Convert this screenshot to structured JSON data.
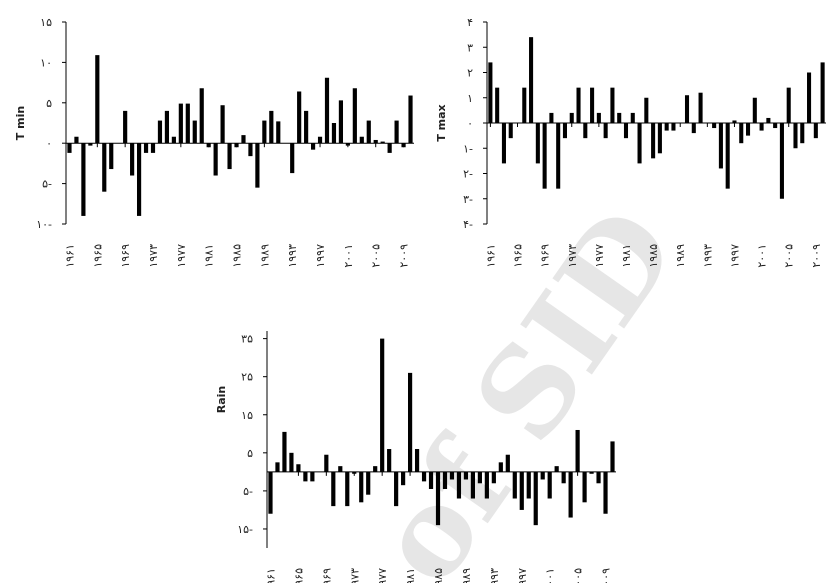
{
  "chart_data": [
    {
      "type": "bar",
      "y_label": "T min",
      "color": "#000000",
      "x": [
        1961,
        1962,
        1963,
        1964,
        1965,
        1966,
        1967,
        1968,
        1969,
        1970,
        1971,
        1972,
        1973,
        1974,
        1975,
        1976,
        1977,
        1978,
        1979,
        1980,
        1981,
        1982,
        1983,
        1984,
        1985,
        1986,
        1987,
        1988,
        1989,
        1990,
        1991,
        1992,
        1993,
        1994,
        1995,
        1996,
        1997,
        1998,
        1999,
        2000,
        2001,
        2002,
        2003,
        2004,
        2005,
        2006,
        2007,
        2008,
        2009,
        2010
      ],
      "values": [
        -1.2,
        0.8,
        -9,
        -0.3,
        10.9,
        -6,
        -3.2,
        0,
        4,
        -4,
        -9,
        -1.2,
        -1.2,
        2.8,
        4,
        0.8,
        4.9,
        4.9,
        2.8,
        6.8,
        -0.5,
        -4,
        4.7,
        -3.2,
        -0.5,
        1,
        -1.6,
        -5.5,
        2.8,
        4,
        2.7,
        0,
        -3.7,
        6.4,
        4,
        -0.8,
        0.8,
        8.1,
        2.5,
        5.3,
        -0.3,
        6.8,
        0.8,
        2.8,
        0.4,
        0.2,
        -1.2,
        2.8,
        -0.5,
        5.9
      ],
      "xlim": [
        1960.5,
        2010.5
      ],
      "ylim": [
        -10,
        15
      ],
      "yticks": [
        {
          "value": 15,
          "label": "۱۵"
        },
        {
          "value": 10,
          "label": "۱۰"
        },
        {
          "value": 5,
          "label": "۵"
        },
        {
          "value": 0,
          "label": "۰"
        },
        {
          "value": -5,
          "label": "۵-"
        },
        {
          "value": -10,
          "label": "۱۰-"
        }
      ],
      "xticks": [
        {
          "value": 1961,
          "label": "۱۹۶۱"
        },
        {
          "value": 1965,
          "label": "۱۹۶۵"
        },
        {
          "value": 1969,
          "label": "۱۹۶۹"
        },
        {
          "value": 1973,
          "label": "۱۹۷۳"
        },
        {
          "value": 1977,
          "label": "۱۹۷۷"
        },
        {
          "value": 1981,
          "label": "۱۹۸۱"
        },
        {
          "value": 1985,
          "label": "۱۹۸۵"
        },
        {
          "value": 1989,
          "label": "۱۹۸۹"
        },
        {
          "value": 1993,
          "label": "۱۹۹۳"
        },
        {
          "value": 1997,
          "label": "۱۹۹۷"
        },
        {
          "value": 2001,
          "label": "۲۰۰۱"
        },
        {
          "value": 2005,
          "label": "۲۰۰۵"
        },
        {
          "value": 2009,
          "label": "۲۰۰۹"
        }
      ]
    },
    {
      "type": "bar",
      "y_label": "T max",
      "color": "#000000",
      "x": [
        1961,
        1962,
        1963,
        1964,
        1965,
        1966,
        1967,
        1968,
        1969,
        1970,
        1971,
        1972,
        1973,
        1974,
        1975,
        1976,
        1977,
        1978,
        1979,
        1980,
        1981,
        1982,
        1983,
        1984,
        1985,
        1986,
        1987,
        1988,
        1989,
        1990,
        1991,
        1992,
        1993,
        1994,
        1995,
        1996,
        1997,
        1998,
        1999,
        2000,
        2001,
        2002,
        2003,
        2004,
        2005,
        2006,
        2007,
        2008,
        2009,
        2010
      ],
      "values": [
        2.4,
        1.4,
        -1.6,
        -0.6,
        0,
        1.4,
        3.4,
        -1.6,
        -2.6,
        0.4,
        -2.6,
        -0.6,
        0.4,
        1.4,
        -0.6,
        1.4,
        0.4,
        -0.6,
        1.4,
        0.4,
        -0.6,
        0.4,
        -1.6,
        1,
        -1.4,
        -1.2,
        -0.3,
        -0.3,
        0,
        1.1,
        -0.4,
        1.2,
        0,
        -0.2,
        -1.8,
        -2.6,
        0.1,
        -0.8,
        -0.5,
        1,
        -0.3,
        0.2,
        -0.2,
        -3,
        1.4,
        -1,
        -0.8,
        2,
        -0.6,
        2.4
      ],
      "xlim": [
        1960.5,
        2010.5
      ],
      "ylim": [
        -4,
        4
      ],
      "yticks": [
        {
          "value": 4,
          "label": "۴"
        },
        {
          "value": 3,
          "label": "۳"
        },
        {
          "value": 2,
          "label": "۲"
        },
        {
          "value": 1,
          "label": "۱"
        },
        {
          "value": 0,
          "label": "۰"
        },
        {
          "value": -1,
          "label": "۱-"
        },
        {
          "value": -2,
          "label": "۲-"
        },
        {
          "value": -3,
          "label": "۳-"
        },
        {
          "value": -4,
          "label": "۴-"
        }
      ],
      "xticks": [
        {
          "value": 1961,
          "label": "۱۹۶۱"
        },
        {
          "value": 1965,
          "label": "۱۹۶۵"
        },
        {
          "value": 1969,
          "label": "۱۹۶۹"
        },
        {
          "value": 1973,
          "label": "۱۹۷۳"
        },
        {
          "value": 1977,
          "label": "۱۹۷۷"
        },
        {
          "value": 1981,
          "label": "۱۹۸۱"
        },
        {
          "value": 1985,
          "label": "۱۹۸۵"
        },
        {
          "value": 1989,
          "label": "۱۹۸۹"
        },
        {
          "value": 1993,
          "label": "۱۹۹۳"
        },
        {
          "value": 1997,
          "label": "۱۹۹۷"
        },
        {
          "value": 2001,
          "label": "۲۰۰۱"
        },
        {
          "value": 2005,
          "label": "۲۰۰۵"
        },
        {
          "value": 2009,
          "label": "۲۰۰۹"
        }
      ]
    },
    {
      "type": "bar",
      "y_label": "Rain",
      "color": "#000000",
      "x": [
        1961,
        1962,
        1963,
        1964,
        1965,
        1966,
        1967,
        1968,
        1969,
        1970,
        1971,
        1972,
        1973,
        1974,
        1975,
        1976,
        1977,
        1978,
        1979,
        1980,
        1981,
        1982,
        1983,
        1984,
        1985,
        1986,
        1987,
        1988,
        1989,
        1990,
        1991,
        1992,
        1993,
        1994,
        1995,
        1996,
        1997,
        1998,
        1999,
        2000,
        2001,
        2002,
        2003,
        2004,
        2005,
        2006,
        2007,
        2008,
        2009,
        2010
      ],
      "values": [
        -11,
        2.5,
        10.5,
        5,
        2,
        -2.5,
        -2.5,
        0,
        4.5,
        -9,
        1.5,
        -9,
        -0.5,
        -8,
        -6,
        1.5,
        35,
        6,
        -9,
        -3.5,
        26,
        6,
        -2.5,
        -4.5,
        -14,
        -4.5,
        -2,
        -7,
        -2,
        -7,
        -3,
        -7,
        -3,
        2.5,
        4.5,
        -7,
        -10,
        -7,
        -14,
        -2,
        -7,
        1.5,
        -3,
        -12,
        11,
        -8,
        -0.5,
        -3,
        -11,
        8
      ],
      "xlim": [
        1960.5,
        2010.5
      ],
      "ylim": [
        -20,
        37
      ],
      "yticks": [
        {
          "value": 35,
          "label": "۳۵"
        },
        {
          "value": 25,
          "label": "۲۵"
        },
        {
          "value": 15,
          "label": "۱۵"
        },
        {
          "value": 5,
          "label": "۵"
        },
        {
          "value": -5,
          "label": "۵-"
        },
        {
          "value": -15,
          "label": "۱۵-"
        }
      ],
      "xticks": [
        {
          "value": 1961,
          "label": "۱۹۶۱"
        },
        {
          "value": 1965,
          "label": "۱۹۶۵"
        },
        {
          "value": 1969,
          "label": "۱۹۶۹"
        },
        {
          "value": 1973,
          "label": "۱۹۷۳"
        },
        {
          "value": 1977,
          "label": "۱۹۷۷"
        },
        {
          "value": 1981,
          "label": "۱۹۸۱"
        },
        {
          "value": 1985,
          "label": "۱۹۸۵"
        },
        {
          "value": 1989,
          "label": "۱۹۸۹"
        },
        {
          "value": 1993,
          "label": "۱۹۹۳"
        },
        {
          "value": 1997,
          "label": "۱۹۹۷"
        },
        {
          "value": 2001,
          "label": "۲۰۰۱"
        },
        {
          "value": 2005,
          "label": "۲۰۰۵"
        },
        {
          "value": 2009,
          "label": "۲۰۰۹"
        }
      ]
    }
  ],
  "watermark": "of SID"
}
